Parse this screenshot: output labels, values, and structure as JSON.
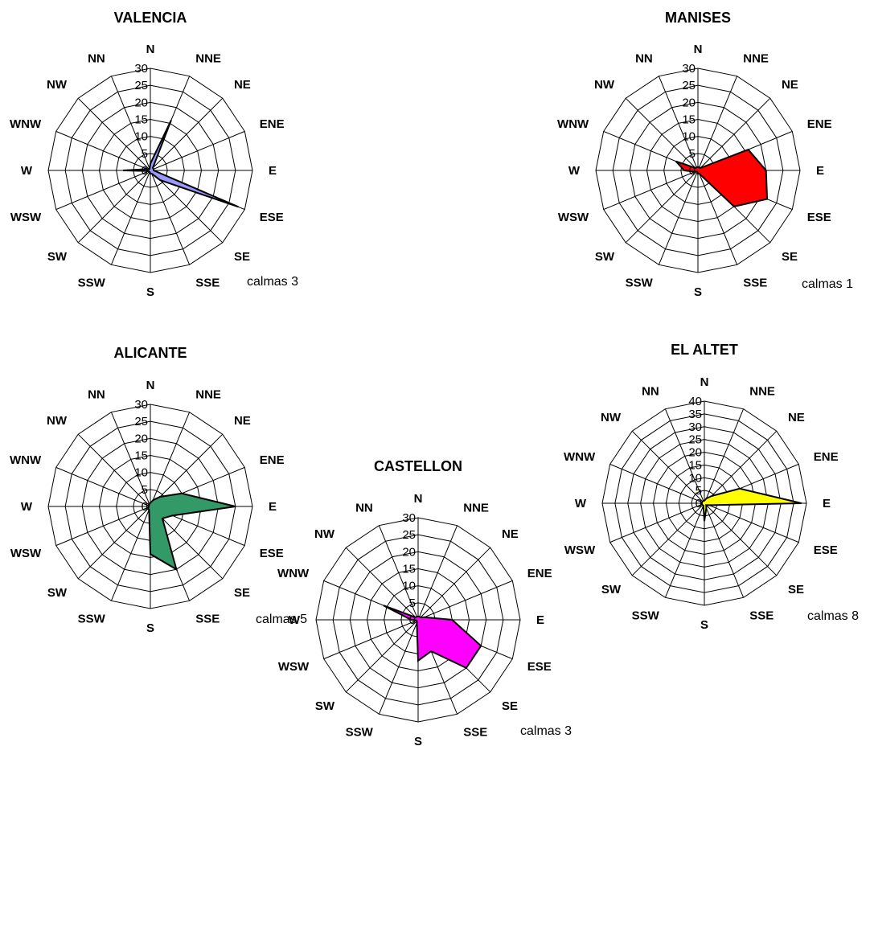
{
  "chart_data": [
    {
      "type": "radar",
      "title": "VALENCIA",
      "directions": [
        "N",
        "NNE",
        "NE",
        "ENE",
        "E",
        "ESE",
        "SE",
        "SSE",
        "S",
        "SSW",
        "SW",
        "WSW",
        "W",
        "WNW",
        "NW",
        "NN"
      ],
      "radial_ticks": [
        "0",
        "5",
        "10",
        "15",
        "20",
        "25",
        "30"
      ],
      "rmax": 30,
      "values": [
        2,
        16,
        1,
        1,
        1,
        28,
        4,
        1,
        1,
        0.5,
        0.5,
        0.5,
        8,
        1,
        0.5,
        0.5
      ],
      "color": "#9999ff",
      "calmas_label": "calmas 3"
    },
    {
      "type": "radar",
      "title": "MANISES",
      "directions": [
        "N",
        "NNE",
        "NE",
        "ENE",
        "E",
        "ESE",
        "SE",
        "SSE",
        "S",
        "SSW",
        "SW",
        "WSW",
        "W",
        "WNW",
        "NW",
        "NN"
      ],
      "radial_ticks": [
        "0",
        "5",
        "10",
        "15",
        "20",
        "25",
        "30"
      ],
      "rmax": 30,
      "values": [
        1,
        1,
        1,
        16,
        20,
        22,
        15,
        1,
        1,
        0.5,
        0.5,
        1,
        4,
        7,
        1,
        1
      ],
      "color": "#ff0000",
      "calmas_label": "calmas 1"
    },
    {
      "type": "radar",
      "title": "ALICANTE",
      "directions": [
        "N",
        "NNE",
        "NE",
        "ENE",
        "E",
        "ESE",
        "SE",
        "SSE",
        "S",
        "SSW",
        "SW",
        "WSW",
        "W",
        "WNW",
        "NW",
        "NN"
      ],
      "radial_ticks": [
        "0",
        "5",
        "10",
        "15",
        "20",
        "25",
        "30"
      ],
      "rmax": 30,
      "values": [
        1,
        2,
        4,
        10,
        25,
        7,
        5,
        20,
        14,
        1,
        1,
        0.5,
        0.5,
        0.5,
        0.5,
        1
      ],
      "color": "#339966",
      "calmas_label": "calmas 5"
    },
    {
      "type": "radar",
      "title": "EL ALTET",
      "directions": [
        "N",
        "NNE",
        "NE",
        "ENE",
        "E",
        "ESE",
        "SE",
        "SSE",
        "S",
        "SSW",
        "SW",
        "WSW",
        "W",
        "WNW",
        "NW",
        "NN"
      ],
      "radial_ticks": [
        "0",
        "5",
        "10",
        "15",
        "20",
        "25",
        "30",
        "35",
        "40"
      ],
      "rmax": 40,
      "values": [
        1,
        2,
        4,
        15,
        38,
        2,
        1,
        2,
        7,
        1,
        1,
        1,
        1,
        1,
        1,
        1
      ],
      "color": "#ffff00",
      "calmas_label": "calmas 8"
    },
    {
      "type": "radar",
      "title": "CASTELLON",
      "directions": [
        "N",
        "NNE",
        "NE",
        "ENE",
        "E",
        "ESE",
        "SE",
        "SSE",
        "S",
        "SSW",
        "SW",
        "WSW",
        "W",
        "WNW",
        "NW",
        "NN"
      ],
      "radial_ticks": [
        "0",
        "5",
        "10",
        "15",
        "20",
        "25",
        "30"
      ],
      "rmax": 30,
      "values": [
        1,
        1,
        1,
        2,
        10,
        20,
        20,
        10,
        12,
        1,
        0.5,
        0.5,
        2,
        11,
        1,
        1
      ],
      "color": "#ff00ff",
      "calmas_label": "calmas 3"
    }
  ]
}
